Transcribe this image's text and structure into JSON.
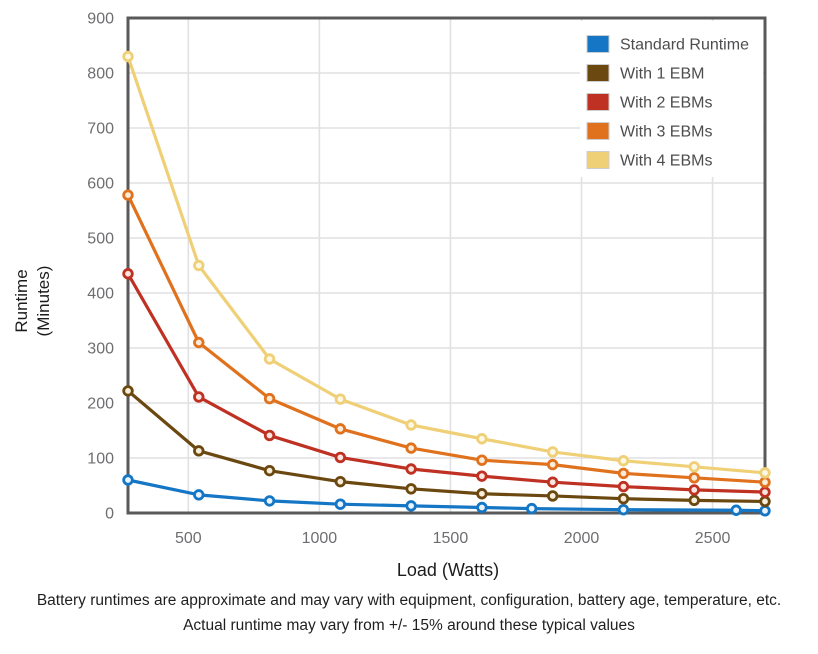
{
  "chart_data": {
    "type": "line",
    "title": "",
    "xlabel": "Load (Watts)",
    "ylabel": "Runtime (Minutes)",
    "ylabel_line1": "Runtime",
    "ylabel_line2": "(Minutes)",
    "xlim": [
      270,
      2700
    ],
    "ylim": [
      0,
      900
    ],
    "x_ticks": [
      500,
      1000,
      1500,
      2000,
      2500
    ],
    "y_ticks": [
      0,
      100,
      200,
      300,
      400,
      500,
      600,
      700,
      800,
      900
    ],
    "grid": true,
    "legend_position": "top-right",
    "series": [
      {
        "name": "Standard Runtime",
        "color": "#1476C4",
        "marker_fill": "#EAF4FD",
        "x": [
          270,
          540,
          810,
          1080,
          1350,
          1620,
          1810,
          2160,
          2590,
          2700
        ],
        "values": [
          60,
          33,
          22,
          16,
          13,
          10,
          8,
          6,
          5,
          4
        ]
      },
      {
        "name": "With 1 EBM",
        "color": "#6B480F",
        "marker_fill": "#F6EDDA",
        "x": [
          270,
          540,
          810,
          1080,
          1350,
          1620,
          1890,
          2160,
          2430,
          2700
        ],
        "values": [
          222,
          113,
          77,
          57,
          44,
          35,
          31,
          26,
          23,
          21
        ]
      },
      {
        "name": "With 2 EBMs",
        "color": "#BF3122",
        "marker_fill": "#FAE6DF",
        "x": [
          270,
          540,
          810,
          1080,
          1350,
          1620,
          1890,
          2160,
          2430,
          2700
        ],
        "values": [
          435,
          211,
          141,
          101,
          80,
          67,
          56,
          48,
          42,
          38
        ]
      },
      {
        "name": "With 3 EBMs",
        "color": "#E0721E",
        "marker_fill": "#FBEBD9",
        "x": [
          270,
          540,
          810,
          1080,
          1350,
          1620,
          1890,
          2160,
          2430,
          2700
        ],
        "values": [
          578,
          310,
          208,
          153,
          118,
          96,
          88,
          72,
          64,
          56
        ]
      },
      {
        "name": "With 4 EBMs",
        "color": "#EFD077",
        "marker_fill": "#FDF8E6",
        "x": [
          270,
          540,
          810,
          1080,
          1350,
          1620,
          1890,
          2160,
          2430,
          2700
        ],
        "values": [
          830,
          450,
          280,
          207,
          160,
          135,
          111,
          95,
          84,
          73
        ]
      }
    ],
    "colors": {
      "grid": "#E0E1E3",
      "spine": "#59595B",
      "tick_label": "#6D6E71",
      "legend_text": "#4D4D4F",
      "legend_bg": "#FFFFFF",
      "swatch_border": "#CCCDCF"
    }
  },
  "caption": {
    "line1": "Battery runtimes are approximate and may vary with equipment, configuration, battery age, temperature, etc.",
    "line2": "Actual runtime may vary from +/- 15% around these typical values"
  }
}
